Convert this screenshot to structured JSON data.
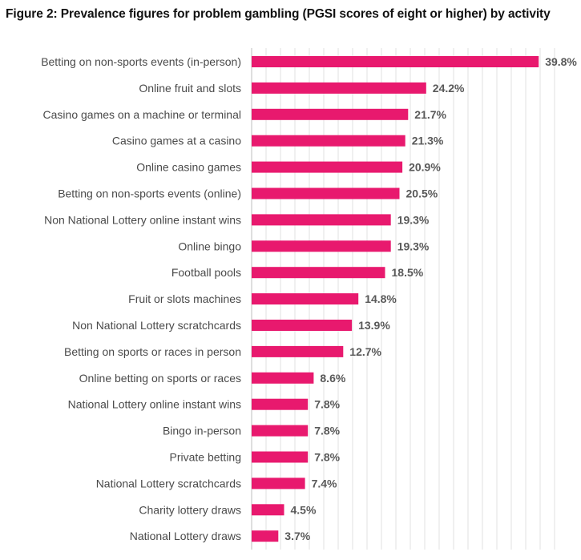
{
  "chart_data": {
    "type": "bar",
    "orientation": "horizontal",
    "title": "Figure 2: Prevalence figures for problem gambling (PGSI scores of eight or higher) by activity",
    "xlabel": "",
    "ylabel": "",
    "xlim": [
      0,
      43
    ],
    "grid": true,
    "value_suffix": "%",
    "bar_color": "#e8196e",
    "categories": [
      "Betting on non-sports events (in-person)",
      "Online fruit and slots",
      "Casino games on a machine or terminal",
      "Casino games at a casino",
      "Online casino games",
      "Betting on non-sports events (online)",
      "Non National Lottery online instant wins",
      "Online bingo",
      "Football pools",
      "Fruit or slots machines",
      "Non National Lottery scratchcards",
      "Betting on sports or races in person",
      "Online betting on sports or races",
      "National Lottery online instant wins",
      "Bingo in-person",
      "Private betting",
      "National Lottery scratchcards",
      "Charity lottery draws",
      "National Lottery draws"
    ],
    "values": [
      39.8,
      24.2,
      21.7,
      21.3,
      20.9,
      20.5,
      19.3,
      19.3,
      18.5,
      14.8,
      13.9,
      12.7,
      8.6,
      7.8,
      7.8,
      7.8,
      7.4,
      4.5,
      3.7
    ],
    "labels": [
      "39.8%",
      "24.2%",
      "21.7%",
      "21.3%",
      "20.9%",
      "20.5%",
      "19.3%",
      "19.3%",
      "18.5%",
      "14.8%",
      "13.9%",
      "12.7%",
      "8.6%",
      "7.8%",
      "7.8%",
      "7.8%",
      "7.4%",
      "4.5%",
      "3.7%"
    ]
  }
}
